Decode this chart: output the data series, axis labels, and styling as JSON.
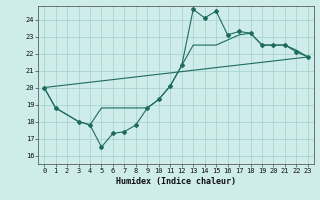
{
  "xlabel": "Humidex (Indice chaleur)",
  "bg_color": "#ceecea",
  "grid_color": "#aad4cf",
  "line_color": "#1e6b5e",
  "xlim": [
    -0.5,
    23.5
  ],
  "ylim": [
    15.5,
    24.8
  ],
  "xticks": [
    0,
    1,
    2,
    3,
    4,
    5,
    6,
    7,
    8,
    9,
    10,
    11,
    12,
    13,
    14,
    15,
    16,
    17,
    18,
    19,
    20,
    21,
    22,
    23
  ],
  "yticks": [
    16,
    17,
    18,
    19,
    20,
    21,
    22,
    23,
    24
  ],
  "line1_x": [
    0,
    1,
    3,
    4,
    5,
    6,
    7,
    8,
    9,
    10,
    11,
    12,
    13,
    14,
    15,
    16,
    17,
    18,
    19,
    20,
    21,
    22,
    23
  ],
  "line1_y": [
    20.0,
    18.8,
    18.0,
    17.8,
    16.5,
    17.3,
    17.4,
    17.8,
    18.8,
    19.3,
    20.1,
    21.3,
    24.6,
    24.1,
    24.5,
    23.1,
    23.3,
    23.2,
    22.5,
    22.5,
    22.5,
    22.1,
    21.8
  ],
  "line2_x": [
    0,
    1,
    3,
    4,
    5,
    6,
    7,
    8,
    9,
    10,
    11,
    12,
    13,
    14,
    15,
    16,
    17,
    18,
    19,
    20,
    21,
    22,
    23
  ],
  "line2_y": [
    20.0,
    18.8,
    18.0,
    17.8,
    18.8,
    18.8,
    18.8,
    18.8,
    18.8,
    19.3,
    20.1,
    21.3,
    22.5,
    22.5,
    22.5,
    22.8,
    23.1,
    23.2,
    22.5,
    22.5,
    22.5,
    22.2,
    21.8
  ],
  "line3_x": [
    0,
    23
  ],
  "line3_y": [
    20.0,
    21.8
  ]
}
